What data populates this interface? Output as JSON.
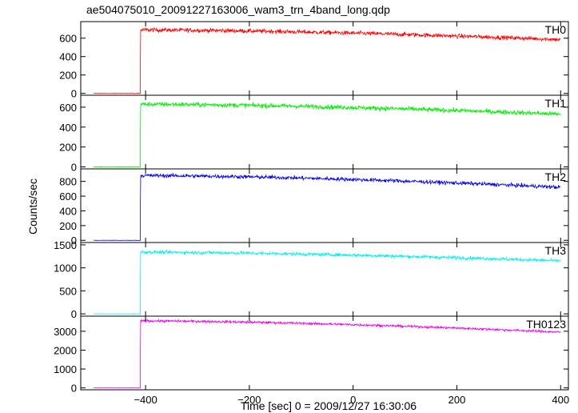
{
  "title": "ae504075010_20091227163006_wam3_trn_4band_long.qdp",
  "ylabel": "Counts/sec",
  "xlabel": "Time [sec] 0 = 2009/12/27 16:30:06",
  "chart_data": {
    "type": "line",
    "title": "ae504075010_20091227163006_wam3_trn_4band_long.qdp",
    "xlabel": "Time [sec] 0 = 2009/12/27 16:30:06",
    "ylabel": "Counts/sec",
    "xlim": [
      -525,
      415
    ],
    "xticks": [
      -400,
      -200,
      0,
      200,
      400
    ],
    "grid": false,
    "onset_time": -410,
    "panels": [
      {
        "name": "TH0",
        "color": "#ff0000",
        "ylim": [
          -20,
          780
        ],
        "yticks": [
          0,
          200,
          400,
          600
        ],
        "pre_level": 0,
        "level_start": 690,
        "level_end": 585,
        "noise": 22,
        "x_end": 400
      },
      {
        "name": "TH1",
        "color": "#00ee00",
        "ylim": [
          -20,
          720
        ],
        "yticks": [
          0,
          200,
          400,
          600
        ],
        "pre_level": 0,
        "level_start": 630,
        "level_end": 530,
        "noise": 22,
        "x_end": 400
      },
      {
        "name": "TH2",
        "color": "#0000ee",
        "ylim": [
          -30,
          970
        ],
        "yticks": [
          0,
          200,
          400,
          600,
          800
        ],
        "pre_level": 0,
        "level_start": 880,
        "level_end": 720,
        "noise": 25,
        "x_end": 400
      },
      {
        "name": "TH3",
        "color": "#00eeee",
        "ylim": [
          -50,
          1550
        ],
        "yticks": [
          0,
          500,
          1000,
          1500
        ],
        "pre_level": 0,
        "level_start": 1340,
        "level_end": 1150,
        "noise": 35,
        "x_end": 400
      },
      {
        "name": "TH0123",
        "color": "#ee00ee",
        "ylim": [
          -100,
          3800
        ],
        "yticks": [
          0,
          1000,
          2000,
          3000
        ],
        "pre_level": 0,
        "level_start": 3550,
        "level_end": 2950,
        "noise": 60,
        "x_end": 400
      }
    ]
  }
}
